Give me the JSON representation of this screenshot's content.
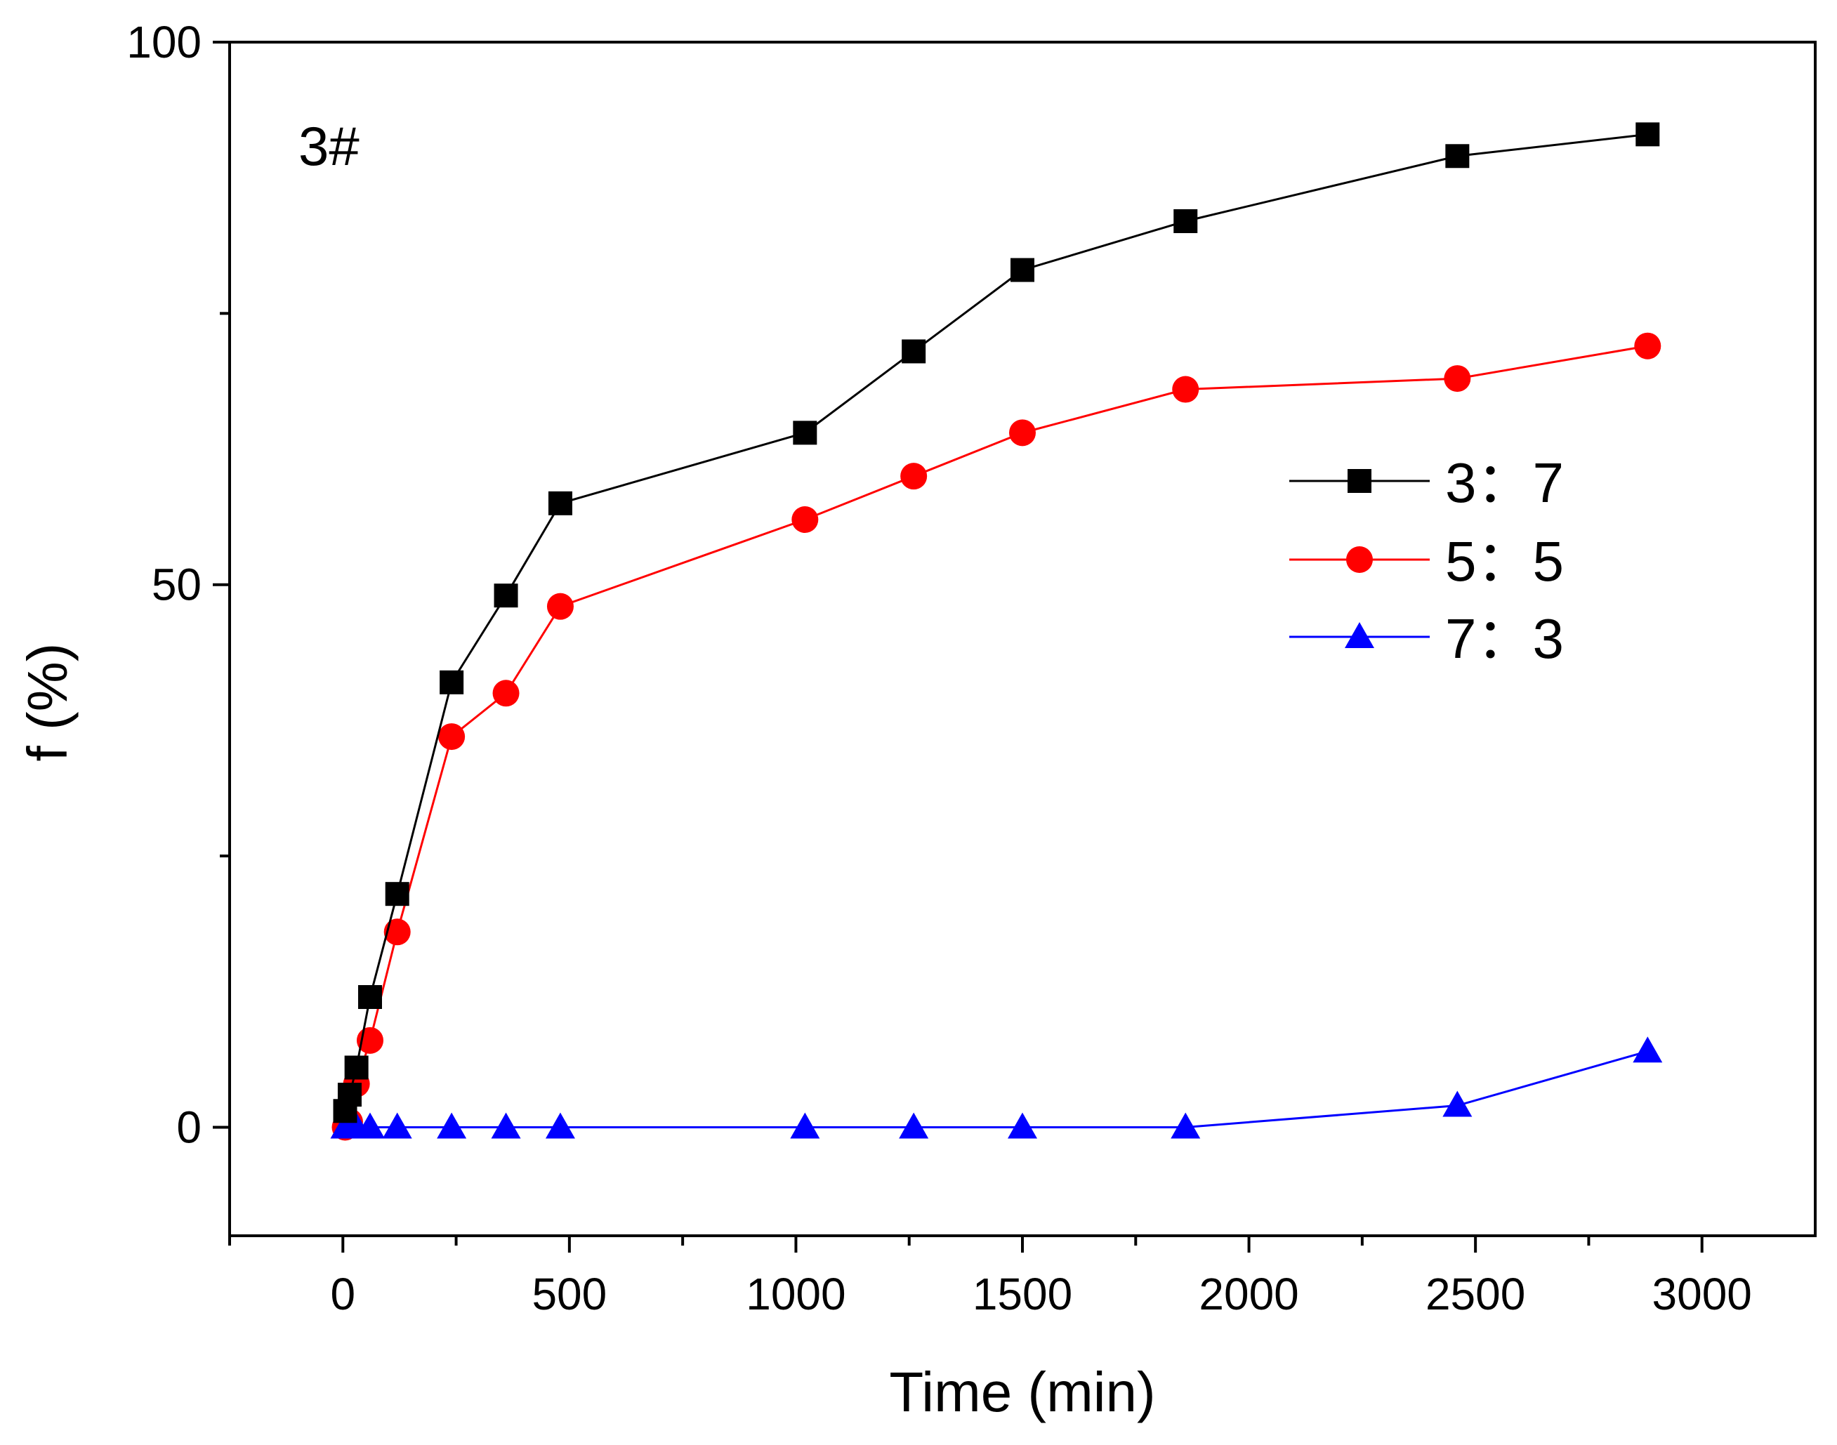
{
  "chart_data": {
    "type": "line",
    "title": "",
    "annotation": "3#",
    "xlabel": "Time (min)",
    "ylabel": "f (%)",
    "xlim": [
      -250,
      3250
    ],
    "ylim": [
      -10,
      100
    ],
    "x_ticks": [
      0,
      500,
      1000,
      1500,
      2000,
      2500,
      3000
    ],
    "x_tick_labels": [
      "0",
      "500",
      "1000",
      "1500",
      "2000",
      "2500",
      "3000"
    ],
    "y_ticks": [
      0,
      50,
      100
    ],
    "y_tick_labels": [
      "0",
      "50",
      "100"
    ],
    "grid": false,
    "legend_position": "center-right",
    "series": [
      {
        "name": "3：7",
        "color": "#000000",
        "marker": "square",
        "x": [
          5,
          15,
          30,
          60,
          120,
          240,
          360,
          480,
          1020,
          1260,
          1500,
          1860,
          2460,
          2880
        ],
        "y": [
          1.5,
          3,
          5.5,
          12,
          21.5,
          41,
          49,
          57.5,
          64,
          71.5,
          79,
          83.5,
          89.5,
          91.5
        ]
      },
      {
        "name": "5：5",
        "color": "#ff0000",
        "marker": "circle",
        "x": [
          5,
          15,
          30,
          60,
          120,
          240,
          360,
          480,
          1020,
          1260,
          1500,
          1860,
          2460,
          2880
        ],
        "y": [
          0,
          0.5,
          4,
          8,
          18,
          36,
          40,
          48,
          56,
          60,
          64,
          68,
          69,
          72
        ]
      },
      {
        "name": "7：3",
        "color": "#0000ff",
        "marker": "triangle",
        "x": [
          5,
          15,
          30,
          60,
          120,
          240,
          360,
          480,
          1020,
          1260,
          1500,
          1860,
          2460,
          2880
        ],
        "y": [
          0,
          0,
          0,
          0,
          0,
          0,
          0,
          0,
          0,
          0,
          0,
          0,
          2,
          7
        ]
      }
    ]
  }
}
